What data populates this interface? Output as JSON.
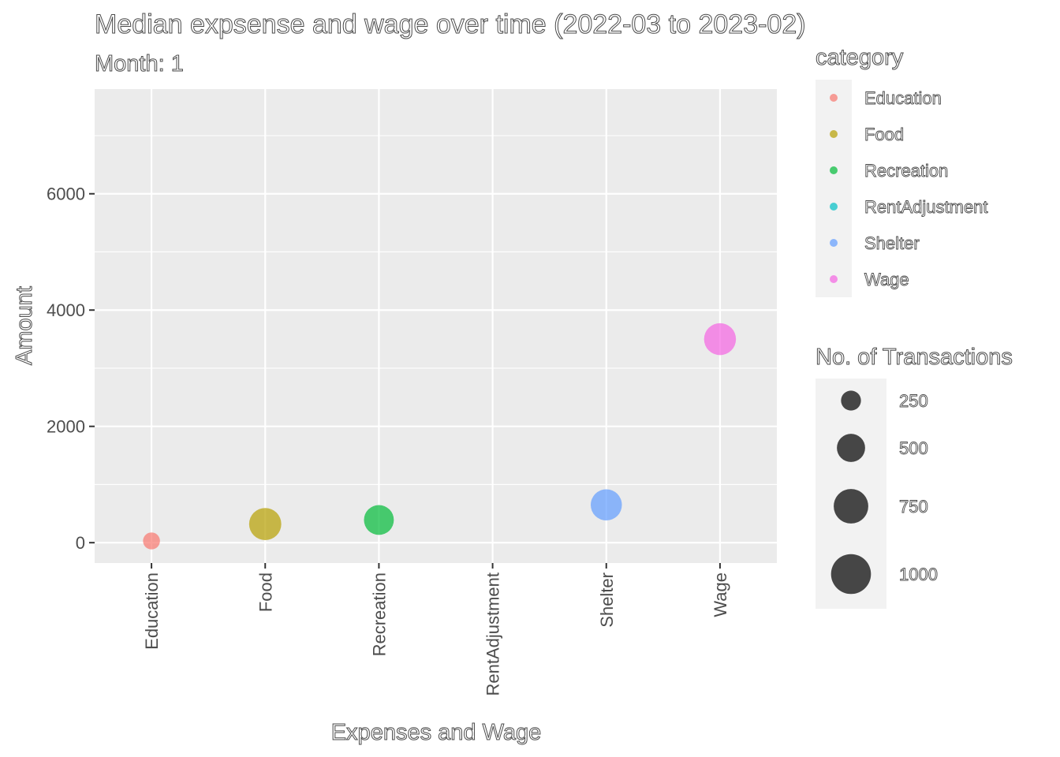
{
  "chart_data": {
    "type": "scatter",
    "title": "Median expsense and wage over time (2022-03 to 2023-02)",
    "subtitle": "Month: 1",
    "xlabel": "Expenses and Wage",
    "ylabel": "Amount",
    "categories": [
      "Education",
      "Food",
      "Recreation",
      "RentAdjustment",
      "Shelter",
      "Wage"
    ],
    "ylim": [
      -350,
      7800
    ],
    "yticks": [
      0,
      2000,
      4000,
      6000
    ],
    "grid": true,
    "points": [
      {
        "category": "Education",
        "amount": 30,
        "transactions": 180,
        "color": "#F8766D"
      },
      {
        "category": "Food",
        "amount": 320,
        "transactions": 650,
        "color": "#B79F00"
      },
      {
        "category": "Recreation",
        "amount": 390,
        "transactions": 560,
        "color": "#00BA38"
      },
      {
        "category": "Shelter",
        "amount": 650,
        "transactions": 610,
        "color": "#619CFF"
      },
      {
        "category": "Wage",
        "amount": 3500,
        "transactions": 640,
        "color": "#F564E3"
      }
    ],
    "legend_color": {
      "title": "category",
      "placement": "right",
      "items": [
        {
          "label": "Education",
          "color": "#F8766D"
        },
        {
          "label": "Food",
          "color": "#B79F00"
        },
        {
          "label": "Recreation",
          "color": "#00BA38"
        },
        {
          "label": "RentAdjustment",
          "color": "#00BFC4"
        },
        {
          "label": "Shelter",
          "color": "#619CFF"
        },
        {
          "label": "Wage",
          "color": "#F564E3"
        }
      ]
    },
    "legend_size": {
      "title": "No. of Transactions",
      "placement": "right",
      "values": [
        250,
        500,
        750,
        1000
      ],
      "labels": [
        "250",
        "500",
        "750",
        "1000"
      ],
      "color": "#333333"
    }
  }
}
